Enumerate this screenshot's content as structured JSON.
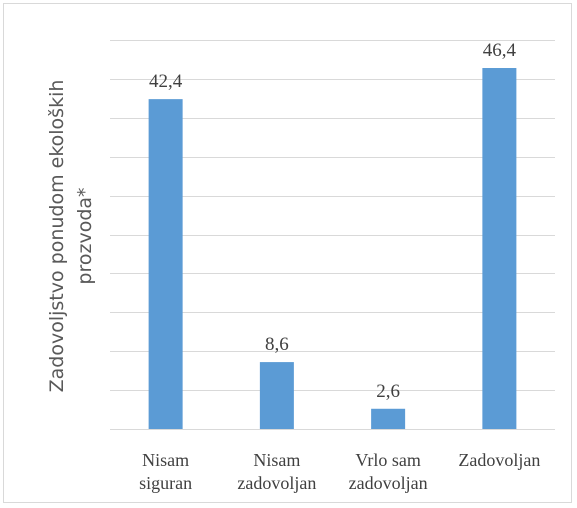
{
  "chart_data": {
    "type": "bar",
    "ylabel_lines": [
      "Zadovoljstvo ponudom ekoloških",
      "prozvoda*"
    ],
    "categories": [
      [
        "Nisam",
        "siguran"
      ],
      [
        "Nisam",
        "zadovoljan"
      ],
      [
        "Vrlo sam",
        "zadovoljan"
      ],
      [
        "Zadovoljan"
      ]
    ],
    "values": [
      42.4,
      8.6,
      2.6,
      46.4
    ],
    "value_labels": [
      "42,4",
      "8,6",
      "2,6",
      "46,4"
    ],
    "ylim": [
      0,
      50
    ],
    "grid": true,
    "legend": "none",
    "bar_color": "#5b9bd5",
    "grid_color": "#d9d9d9"
  }
}
